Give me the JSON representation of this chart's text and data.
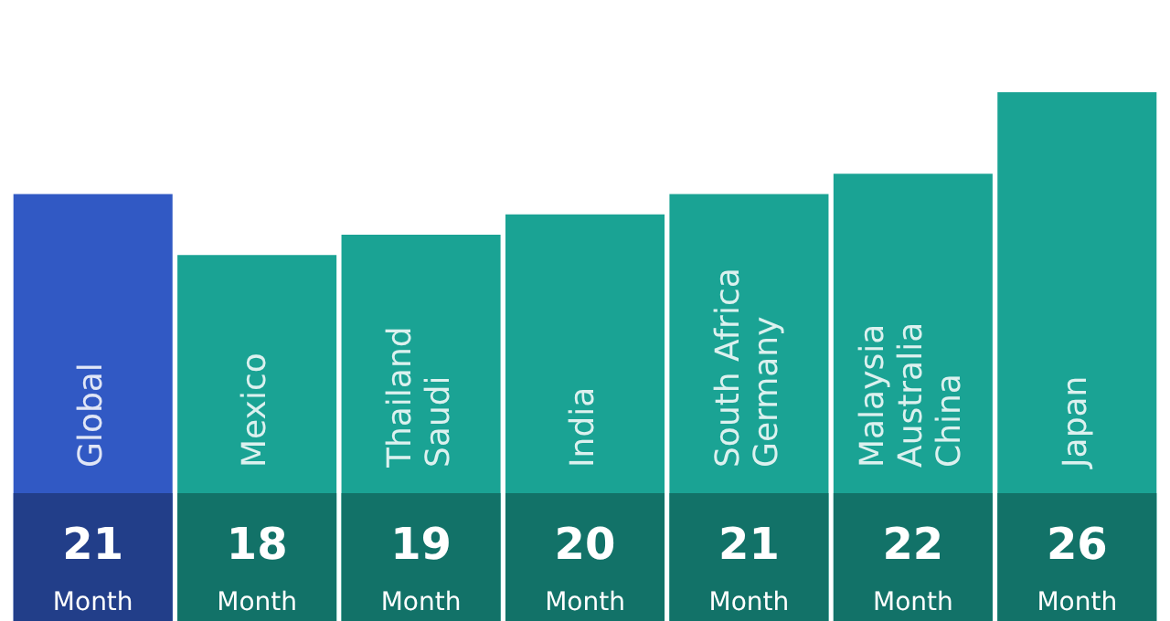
{
  "chart_data": {
    "type": "bar",
    "categories": [
      "Global",
      "Mexico",
      "Thailand\nSaudi",
      "India",
      "South Africa\nGermany",
      "Malaysia\nAustralia\nChina",
      "Japan"
    ],
    "values": [
      21,
      18,
      19,
      20,
      21,
      22,
      26
    ],
    "colors": [
      "#3159c4",
      "#1aa394",
      "#1aa394",
      "#1aa394",
      "#1aa394",
      "#1aa394",
      "#1aa394"
    ],
    "value_labels": [
      "21\nMonth",
      "18\nMonth",
      "19\nMonth",
      "20\nMonth",
      "21\nMonth",
      "22\nMonth",
      "26\nMonth"
    ],
    "legend": false,
    "tick_labels": false
  }
}
